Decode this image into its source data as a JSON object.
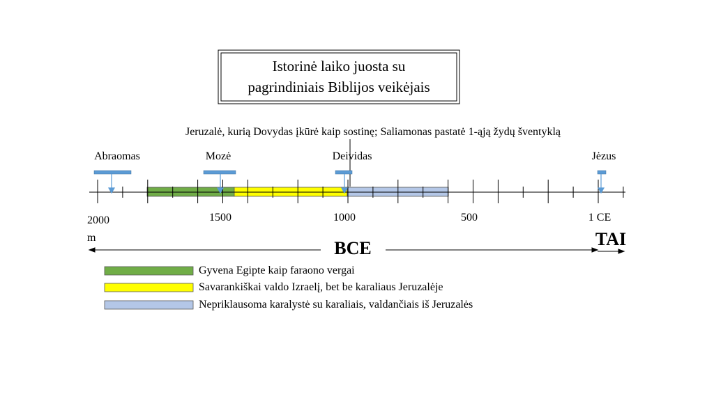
{
  "title": {
    "lines": [
      "Istorinė laiko juosta su",
      "pagrindiniais Biblijos veikėjais"
    ]
  },
  "annotation": "Jeruzalė, kurią Dovydas įkūrė kaip sostinę; Saliamonas pastatė 1-ąją žydų šventyklą",
  "people": [
    "Abraomas",
    "Mozė",
    "Deividas",
    "Jėzus"
  ],
  "axis_labels": [
    "2000 m",
    "1500",
    "1000",
    "500",
    "1 CE"
  ],
  "eras": [
    "BCE",
    "TAI"
  ],
  "legend": [
    "Gyvena Egipte kaip faraono vergai",
    "Savarankiškai valdo Izraelį, bet be karaliaus Jeruzalėje",
    "Nepriklausoma karalystė su karaliais, valdančiais iš Jeruzalės"
  ]
}
